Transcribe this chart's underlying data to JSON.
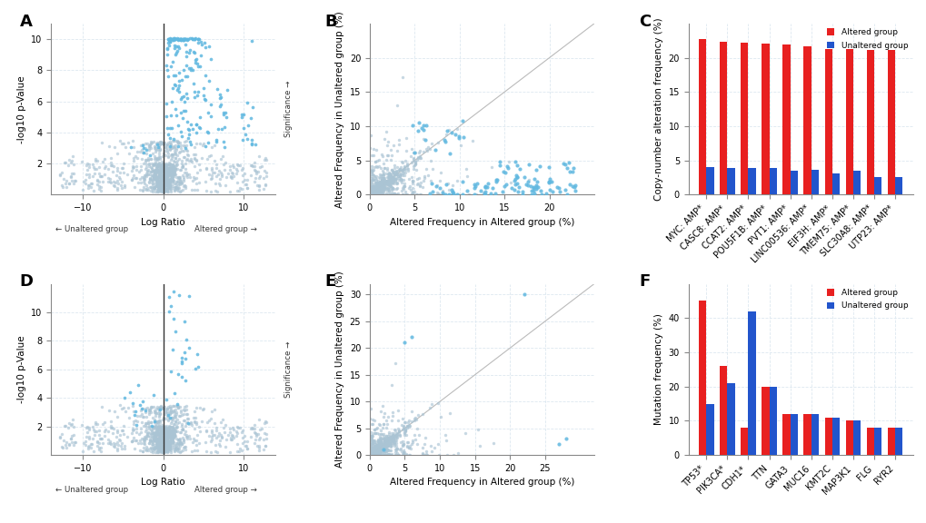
{
  "panel_label_fontsize": 13,
  "background_color": "#ffffff",
  "volcano_A": {
    "xlabel": "Log Ratio",
    "ylabel": "-log10 p-Value",
    "xlim": [
      -14,
      14
    ],
    "ylim": [
      0,
      11
    ],
    "xticks": [
      -10,
      0,
      10
    ],
    "yticks": [
      2,
      4,
      6,
      8,
      10
    ],
    "x_label_left": "← Unaltered group",
    "x_label_right": "Altered group →",
    "significance_label": "Significance →",
    "vline": 0
  },
  "scatter_B": {
    "xlabel": "Altered Frequency in Altered group (%)",
    "ylabel": "Altered Frequency in Unaltered group (%)",
    "xlim": [
      0,
      25
    ],
    "ylim": [
      0,
      25
    ],
    "xticks": [
      0,
      5,
      10,
      15,
      20
    ],
    "yticks": [
      0,
      5,
      10,
      15,
      20
    ]
  },
  "bar_C": {
    "ylabel": "Copy-number alteration frequency (%)",
    "categories": [
      "MYC: AMP*",
      "CASC8: AMP*",
      "CCAT2: AMP*",
      "POU5F1B: AMP*",
      "PVT1: AMP*",
      "LINC00536: AMP*",
      "EIF3H: AMP*",
      "TMEM75: AMP*",
      "SLC30A8: AMP*",
      "UTP23: AMP*"
    ],
    "altered_values": [
      22.7,
      22.3,
      22.2,
      22.1,
      21.9,
      21.7,
      21.3,
      21.3,
      21.1,
      21.1
    ],
    "unaltered_values": [
      4.1,
      3.9,
      3.9,
      3.9,
      3.5,
      3.7,
      3.1,
      3.5,
      2.6,
      2.6
    ],
    "ylim": [
      0,
      25
    ],
    "yticks": [
      0,
      5,
      10,
      15,
      20
    ],
    "altered_color": "#e82020",
    "unaltered_color": "#2255cc",
    "legend_altered": "Altered group",
    "legend_unaltered": "Unaltered group"
  },
  "volcano_D": {
    "xlabel": "Log Ratio",
    "ylabel": "-log10 p-Value",
    "xlim": [
      -14,
      14
    ],
    "ylim": [
      0,
      12
    ],
    "xticks": [
      -10,
      0,
      10
    ],
    "yticks": [
      2,
      4,
      6,
      8,
      10
    ],
    "x_label_left": "← Unaltered group",
    "x_label_right": "Altered group →",
    "significance_label": "Significance →",
    "vline": 0
  },
  "scatter_E": {
    "xlabel": "Altered Frequency in Altered group (%)",
    "ylabel": "Altered Frequency in Unaltered group (%)",
    "xlim": [
      0,
      32
    ],
    "ylim": [
      0,
      32
    ],
    "xticks": [
      0,
      5,
      10,
      15,
      20,
      25
    ],
    "yticks": [
      0,
      5,
      10,
      15,
      20,
      25,
      30
    ]
  },
  "bar_F": {
    "ylabel": "Mutation frequency (%)",
    "categories": [
      "TP53*",
      "PIK3CA*",
      "CDH1*",
      "TTN",
      "GATA3",
      "MUC16",
      "KMT2C",
      "MAP3K1",
      "FLG",
      "RYR2"
    ],
    "altered_values": [
      45.0,
      26.0,
      8.0,
      20.0,
      12.0,
      12.0,
      11.0,
      10.0,
      8.0,
      8.0
    ],
    "unaltered_values": [
      15.0,
      21.0,
      42.0,
      20.0,
      12.0,
      12.0,
      11.0,
      10.0,
      8.0,
      8.0
    ],
    "ylim": [
      0,
      50
    ],
    "yticks": [
      0,
      10,
      20,
      30,
      40
    ],
    "altered_color": "#e82020",
    "unaltered_color": "#2255cc",
    "legend_altered": "Altered group",
    "legend_unaltered": "Unaltered group"
  },
  "grey_dot_color": "#aac4d4",
  "blue_dot_color": "#60b8e0",
  "grid_color": "#dde8f0",
  "grid_alpha": 1.0,
  "axis_fontsize": 7.5,
  "tick_fontsize": 7
}
